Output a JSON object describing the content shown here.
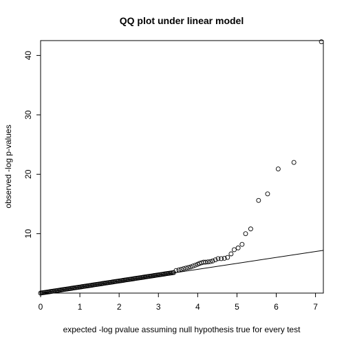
{
  "chart_data": {
    "type": "scatter",
    "title": "QQ plot under linear model",
    "xlabel": "expected -log pvalue assuming null hypothesis true for every test",
    "ylabel": "observed -log p-values",
    "xlim": [
      0,
      7.2
    ],
    "ylim": [
      0,
      42.5
    ],
    "xticks": [
      "0",
      "1",
      "2",
      "3",
      "4",
      "5",
      "6",
      "7"
    ],
    "yticks": [
      "10",
      "20",
      "30",
      "40"
    ],
    "xtick_values": [
      0,
      1,
      2,
      3,
      4,
      5,
      6,
      7
    ],
    "ytick_values": [
      10,
      20,
      30,
      40
    ],
    "reference_line": {
      "slope": 1,
      "intercept": 0
    },
    "grid": false,
    "series": [
      {
        "bulk": {
          "from": 0,
          "to": 3.4,
          "step": 0.03,
          "slope": 1.02
        },
        "points": [
          {
            "x": 3.45,
            "y": 3.8
          },
          {
            "x": 3.52,
            "y": 3.9
          },
          {
            "x": 3.58,
            "y": 4.0
          },
          {
            "x": 3.64,
            "y": 4.1
          },
          {
            "x": 3.7,
            "y": 4.2
          },
          {
            "x": 3.76,
            "y": 4.3
          },
          {
            "x": 3.82,
            "y": 4.4
          },
          {
            "x": 3.88,
            "y": 4.55
          },
          {
            "x": 3.94,
            "y": 4.7
          },
          {
            "x": 4.0,
            "y": 4.85
          },
          {
            "x": 4.05,
            "y": 5.0
          },
          {
            "x": 4.1,
            "y": 5.1
          },
          {
            "x": 4.15,
            "y": 5.2
          },
          {
            "x": 4.2,
            "y": 5.2
          },
          {
            "x": 4.26,
            "y": 5.25
          },
          {
            "x": 4.32,
            "y": 5.3
          },
          {
            "x": 4.38,
            "y": 5.4
          },
          {
            "x": 4.45,
            "y": 5.6
          },
          {
            "x": 4.52,
            "y": 5.8
          },
          {
            "x": 4.6,
            "y": 5.8
          },
          {
            "x": 4.68,
            "y": 5.85
          },
          {
            "x": 4.76,
            "y": 6.0
          },
          {
            "x": 4.85,
            "y": 6.6
          },
          {
            "x": 4.93,
            "y": 7.3
          },
          {
            "x": 5.03,
            "y": 7.6
          },
          {
            "x": 5.13,
            "y": 8.2
          },
          {
            "x": 5.22,
            "y": 10.0
          },
          {
            "x": 5.35,
            "y": 10.8
          },
          {
            "x": 5.55,
            "y": 15.6
          },
          {
            "x": 5.78,
            "y": 16.7
          },
          {
            "x": 6.05,
            "y": 20.9
          },
          {
            "x": 6.45,
            "y": 22.0
          },
          {
            "x": 7.15,
            "y": 42.3
          }
        ]
      }
    ]
  }
}
